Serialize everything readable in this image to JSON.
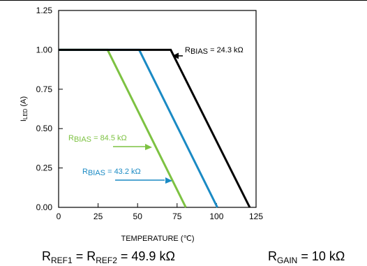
{
  "chart_data": {
    "type": "line",
    "xlabel": "TEMPERATURE (℃)",
    "ylabel_main": "I",
    "ylabel_sub": "LED",
    "ylabel_unit": " (A)",
    "xlim": [
      0,
      125
    ],
    "ylim": [
      0,
      1.25
    ],
    "xticks": [
      0,
      25,
      50,
      75,
      100,
      125
    ],
    "yticks": [
      0.0,
      0.25,
      0.5,
      0.75,
      1.0,
      1.25
    ],
    "ytick_labels": [
      "0.00",
      "0.25",
      "0.50",
      "0.75",
      "1.00",
      "1.25"
    ],
    "xtick_labels": [
      "0",
      "25",
      "50",
      "75",
      "100",
      "125"
    ],
    "grid": false,
    "series": [
      {
        "color": "#7dc242",
        "x": [
          0,
          31,
          80.5
        ],
        "y": [
          1.0,
          1.0,
          0.0
        ],
        "label_main": "R",
        "label_sub": "BIAS",
        "label_value": " = 84.5 kΩ"
      },
      {
        "color": "#1a8ac4",
        "x": [
          0,
          51,
          100.5
        ],
        "y": [
          1.0,
          1.0,
          0.0
        ],
        "label_main": "R",
        "label_sub": "BIAS",
        "label_value": " = 43.2 kΩ"
      },
      {
        "color": "#000000",
        "x": [
          0,
          71,
          121
        ],
        "y": [
          1.0,
          1.0,
          0.0
        ],
        "label_main": "R",
        "label_sub": "BIAS",
        "label_value": " = 24.3 kΩ"
      }
    ]
  },
  "footer": {
    "left_r1": "R",
    "left_r1_sub": "REF1",
    "left_eq1": " = R",
    "left_r2_sub": "REF2",
    "left_value": " = 49.9 kΩ",
    "right_r": "R",
    "right_sub": "GAIN",
    "right_value": " = 10 kΩ"
  }
}
